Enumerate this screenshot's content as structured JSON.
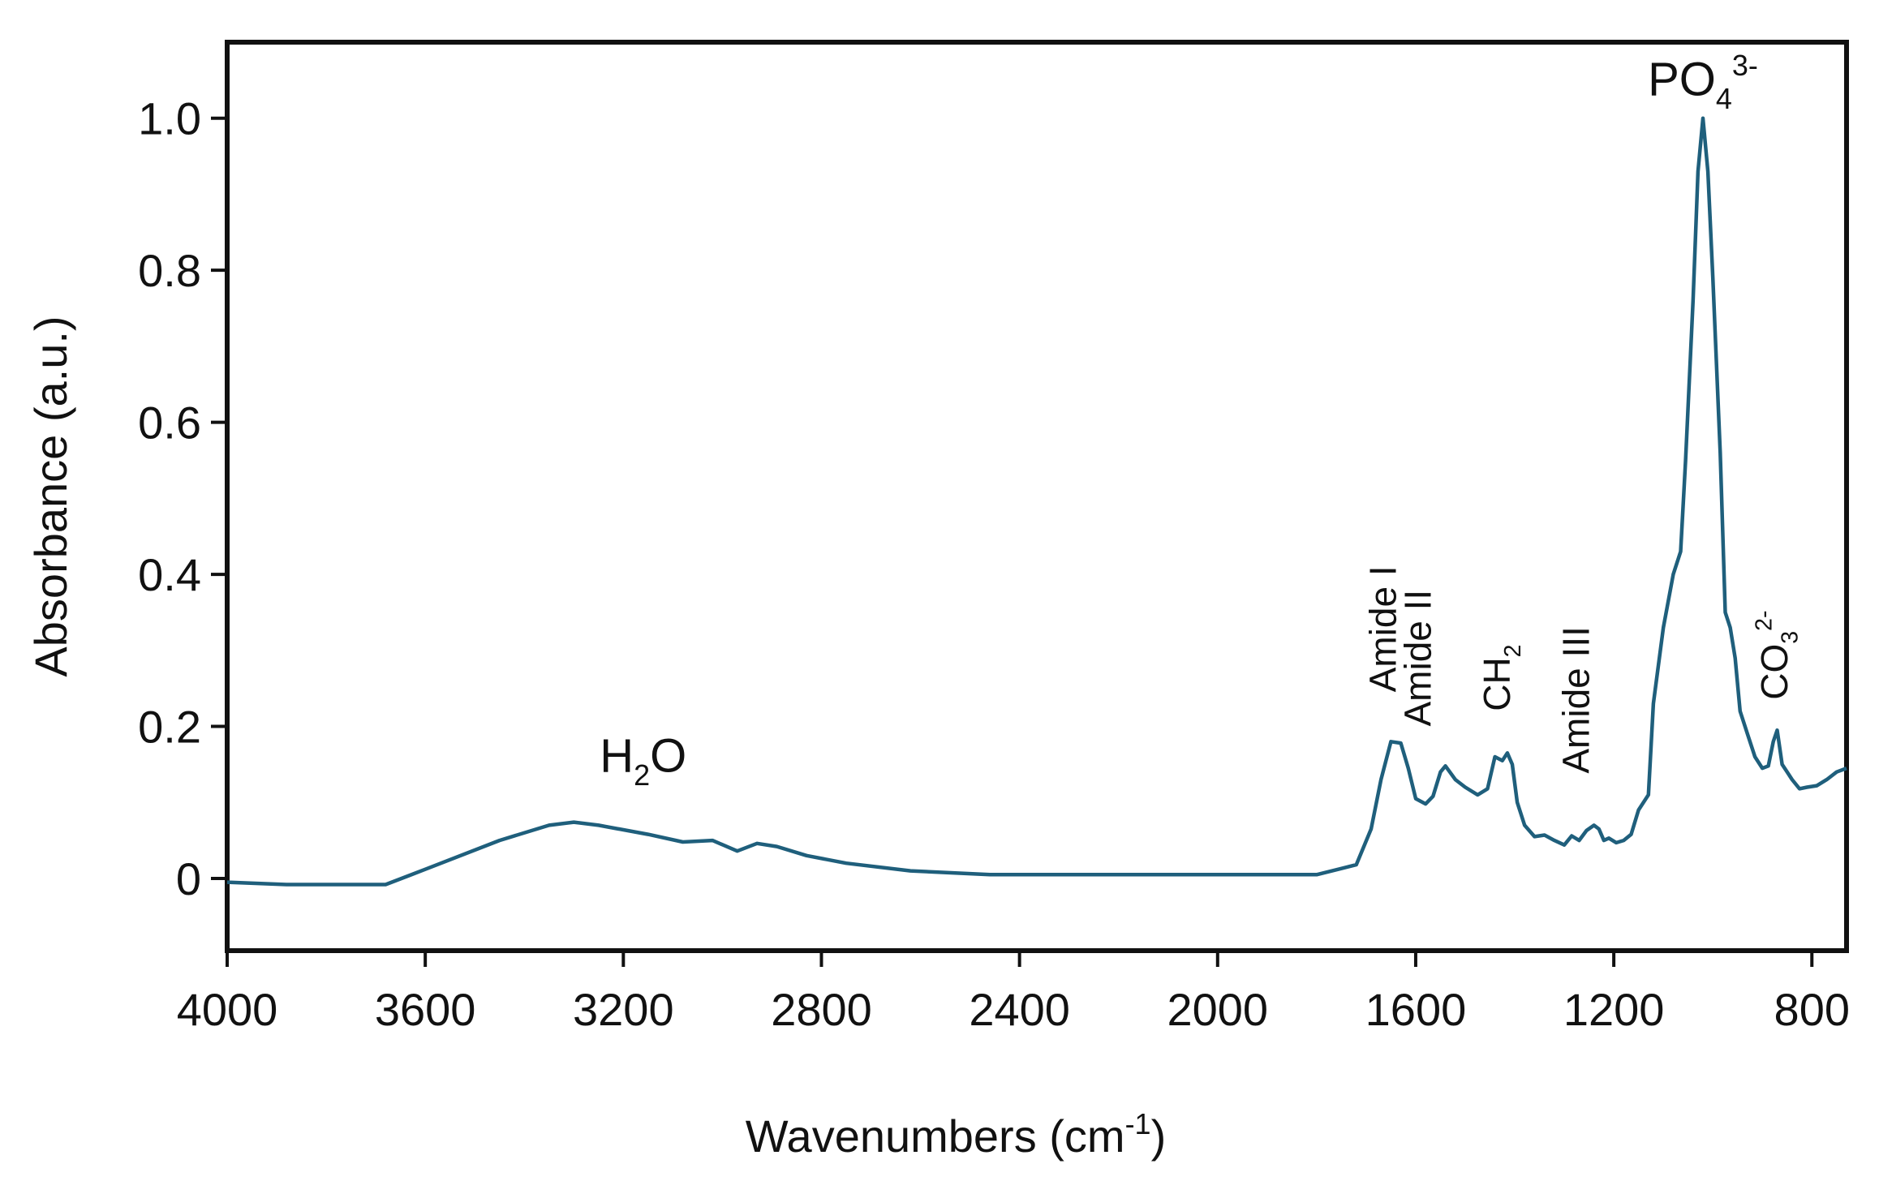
{
  "chart_data": {
    "type": "line",
    "title": "",
    "xlabel": "Wavenumbers (cm",
    "xlabel_sup": "-1",
    "xlabel_close": ")",
    "ylabel": "Absorbance (a.u.)",
    "xlim": [
      4000,
      730
    ],
    "x_reversed": true,
    "ylim": [
      -0.095,
      1.1
    ],
    "grid": false,
    "legend": "none",
    "line_color": "#1f5f7c",
    "x_ticks": [
      4000,
      3600,
      3200,
      2800,
      2400,
      2000,
      1600,
      1200,
      800
    ],
    "x_tick_labels": [
      "4000",
      "3600",
      "3200",
      "2800",
      "2400",
      "2000",
      "1600",
      "1200",
      "800"
    ],
    "y_ticks": [
      0,
      0.2,
      0.4,
      0.6,
      0.8,
      1.0
    ],
    "y_tick_labels": [
      "0",
      "0.2",
      "0.4",
      "0.6",
      "0.8",
      "1.0"
    ],
    "series": [
      {
        "x": [
          4000,
          3880,
          3680,
          3600,
          3450,
          3350,
          3300,
          3250,
          3150,
          3080,
          3020,
          2970,
          2930,
          2890,
          2830,
          2750,
          2620,
          2460,
          2200,
          2000,
          1800,
          1720,
          1690,
          1670,
          1650,
          1630,
          1615,
          1600,
          1580,
          1565,
          1550,
          1540,
          1520,
          1500,
          1475,
          1455,
          1440,
          1425,
          1415,
          1405,
          1395,
          1380,
          1360,
          1340,
          1320,
          1300,
          1285,
          1270,
          1255,
          1240,
          1230,
          1220,
          1210,
          1195,
          1180,
          1165,
          1150,
          1130,
          1120,
          1100,
          1080,
          1065,
          1055,
          1040,
          1030,
          1020,
          1010,
          1000,
          985,
          975,
          965,
          955,
          945,
          930,
          915,
          900,
          888,
          878,
          870,
          860,
          850,
          840,
          825,
          810,
          790,
          770,
          750,
          730
        ],
        "y": [
          -0.005,
          -0.008,
          -0.008,
          0.012,
          0.05,
          0.07,
          0.074,
          0.07,
          0.058,
          0.048,
          0.05,
          0.036,
          0.046,
          0.042,
          0.03,
          0.02,
          0.01,
          0.005,
          0.005,
          0.005,
          0.005,
          0.018,
          0.065,
          0.13,
          0.18,
          0.178,
          0.145,
          0.105,
          0.098,
          0.108,
          0.14,
          0.148,
          0.13,
          0.12,
          0.11,
          0.118,
          0.16,
          0.155,
          0.165,
          0.15,
          0.1,
          0.07,
          0.055,
          0.057,
          0.05,
          0.044,
          0.056,
          0.05,
          0.063,
          0.07,
          0.065,
          0.05,
          0.053,
          0.047,
          0.05,
          0.058,
          0.09,
          0.11,
          0.23,
          0.33,
          0.4,
          0.43,
          0.55,
          0.76,
          0.93,
          1.0,
          0.93,
          0.79,
          0.56,
          0.35,
          0.33,
          0.29,
          0.22,
          0.19,
          0.16,
          0.145,
          0.148,
          0.18,
          0.195,
          0.15,
          0.14,
          0.13,
          0.118,
          0.12,
          0.122,
          0.13,
          0.14,
          0.145
        ]
      }
    ],
    "annotations": [
      {
        "x": 3160,
        "y": 0.14,
        "main": "H",
        "sub": "2",
        "tail": "O",
        "rotate": 0
      },
      {
        "x": 1020,
        "y": 1.03,
        "main": "PO",
        "sub": "4",
        "sup": "3-",
        "rotate": 0
      },
      {
        "x": 1640,
        "y": 0.245,
        "main": "Amide I",
        "rotate": -90
      },
      {
        "x": 1570,
        "y": 0.2,
        "main": "Amide II",
        "rotate": -90
      },
      {
        "x": 1410,
        "y": 0.22,
        "main": "CH",
        "sub": "2",
        "rotate": -90
      },
      {
        "x": 1250,
        "y": 0.138,
        "main": "Amide III",
        "rotate": -90
      },
      {
        "x": 850,
        "y": 0.235,
        "main": "CO",
        "sub": "3",
        "sup": "2-",
        "rotate": -90
      }
    ]
  }
}
